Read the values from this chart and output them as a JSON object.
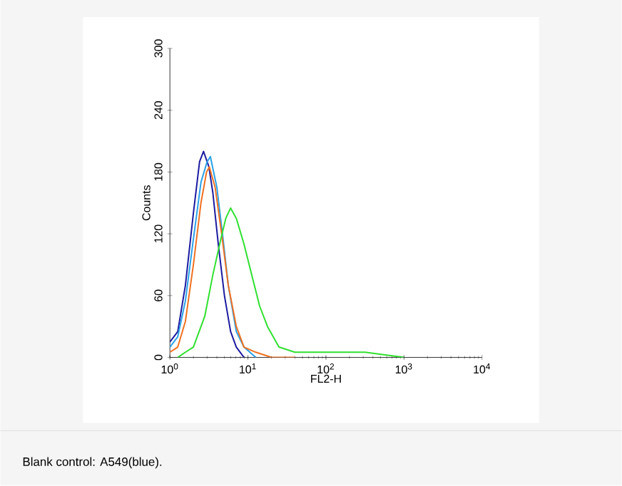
{
  "chart_data": {
    "type": "line",
    "xlabel": "FL2-H",
    "ylabel": "Counts",
    "log": "x",
    "grid": false,
    "marker": "none",
    "line_style": "solid",
    "xlim": [
      1,
      10000
    ],
    "ylim": [
      0,
      300
    ],
    "xticks": [
      {
        "value": 1,
        "label": "10$^{0}$"
      },
      {
        "value": 10,
        "label": "10$^{1}$"
      },
      {
        "value": 100,
        "label": "10$^{2}$"
      },
      {
        "value": 1000,
        "label": "10$^{3}$"
      },
      {
        "value": 10000,
        "label": "10$^{4}$"
      }
    ],
    "yticks": [
      0,
      60,
      120,
      180,
      240,
      300
    ],
    "annotations": [
      "Blank control: A549(blue)."
    ],
    "series": [
      {
        "color": "#1a1aa0",
        "x": [
          1,
          1.26,
          1.58,
          2.0,
          2.4,
          2.7,
          3.16,
          3.55,
          4.17,
          5.0,
          6.0,
          7.1,
          8.9
        ],
        "values": [
          15,
          25,
          70,
          140,
          190,
          200,
          185,
          160,
          110,
          60,
          25,
          10,
          0
        ]
      },
      {
        "color": "#2aa0e8",
        "x": [
          1,
          1.26,
          1.58,
          2.0,
          2.5,
          3.0,
          3.3,
          4.0,
          4.8,
          5.6,
          7.1,
          8.9,
          12.6
        ],
        "values": [
          10,
          20,
          55,
          115,
          170,
          190,
          195,
          165,
          115,
          70,
          25,
          10,
          0
        ]
      },
      {
        "color": "#f07020",
        "x": [
          1,
          1.26,
          1.58,
          2.0,
          2.5,
          2.95,
          3.2,
          3.8,
          4.6,
          5.6,
          7.1,
          8.9,
          12.6,
          20,
          40
        ],
        "values": [
          5,
          10,
          35,
          90,
          150,
          180,
          185,
          165,
          120,
          70,
          30,
          10,
          5,
          0,
          0
        ]
      },
      {
        "color": "#30e030",
        "x": [
          1.26,
          1.58,
          2.0,
          2.8,
          3.55,
          4.5,
          5.2,
          6.0,
          7.1,
          8.9,
          11.2,
          14.1,
          17.8,
          25,
          40,
          100,
          316,
          1000
        ],
        "values": [
          0,
          5,
          10,
          40,
          80,
          115,
          135,
          145,
          135,
          110,
          80,
          50,
          30,
          10,
          5,
          5,
          5,
          0
        ]
      }
    ]
  }
}
